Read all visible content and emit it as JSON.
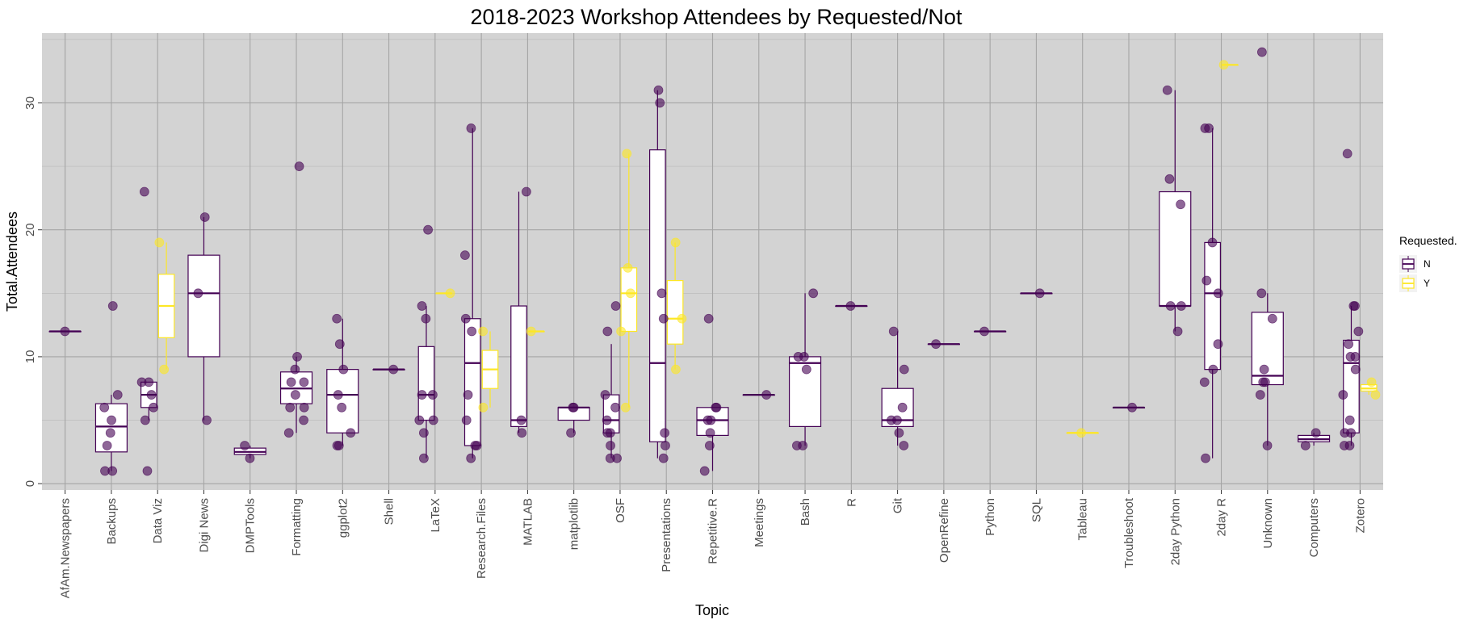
{
  "chart_data": {
    "type": "boxplot",
    "title": "2018-2023 Workshop Attendees by Requested/Not",
    "xlabel": "Topic",
    "ylabel": "Total.Attendees",
    "ylim": [
      -0.5,
      35.5
    ],
    "yticks": [
      0,
      10,
      20,
      30
    ],
    "grid": true,
    "panel_background": "#d3d3d3",
    "legend": {
      "title": "Requested.",
      "position": "right",
      "entries": [
        {
          "key": "N",
          "label": "N",
          "color": "#440154"
        },
        {
          "key": "Y",
          "label": "Y",
          "color": "#FDE725"
        }
      ]
    },
    "categories": [
      "AfAm.Newspapers",
      "Backups",
      "Data Viz",
      "Digi News",
      "DMPTools",
      "Formatting",
      "ggplot2",
      "Shell",
      "LaTeX",
      "Research.Files",
      "MATLAB",
      "matplotlib",
      "OSF",
      "Presentations",
      "Repetitive.R",
      "Meetings",
      "Bash",
      "R",
      "Git",
      "OpenRefine",
      "Python",
      "SQL",
      "Tableau",
      "Troubleshoot",
      "2day Python",
      "2day R",
      "Unknown",
      "Computers",
      "Zotero"
    ],
    "series": [
      {
        "name": "N",
        "color": "#440154",
        "boxes": {
          "AfAm.Newspapers": [
            12,
            12,
            12,
            12,
            12
          ],
          "Backups": [
            1,
            2.5,
            4.5,
            6.3,
            7
          ],
          "Data Viz": [
            5,
            6,
            7,
            8,
            8
          ],
          "Digi News": [
            5,
            10,
            15,
            18,
            21
          ],
          "DMPTools": [
            2,
            2.3,
            2.5,
            2.8,
            3
          ],
          "Formatting": [
            4,
            6.3,
            7.5,
            8.8,
            10
          ],
          "ggplot2": [
            3,
            4,
            7,
            9,
            13
          ],
          "Shell": [
            9,
            9,
            9,
            9,
            9
          ],
          "LaTeX": [
            2,
            5,
            7,
            10.8,
            14
          ],
          "Research.Files": [
            2,
            3,
            9.5,
            13,
            28
          ],
          "MATLAB": [
            4,
            4.5,
            5,
            14,
            23
          ],
          "matplotlib": [
            4,
            5,
            6,
            6,
            6
          ],
          "OSF": [
            2,
            4,
            5,
            7,
            11
          ],
          "Presentations": [
            2,
            3.3,
            9.5,
            26.3,
            31
          ],
          "Repetitive.R": [
            1,
            3.8,
            5,
            6,
            6
          ],
          "Meetings": [
            7,
            7,
            7,
            7,
            7
          ],
          "Bash": [
            3,
            4.5,
            9.5,
            10,
            15
          ],
          "R": [
            14,
            14,
            14,
            14,
            14
          ],
          "Git": [
            3,
            4.5,
            5,
            7.5,
            12
          ],
          "OpenRefine": [
            11,
            11,
            11,
            11,
            11
          ],
          "Python": [
            12,
            12,
            12,
            12,
            12
          ],
          "SQL": [
            15,
            15,
            15,
            15,
            15
          ],
          "Troubleshoot": [
            6,
            6,
            6,
            6,
            6
          ],
          "2day Python": [
            12,
            14,
            14,
            23,
            31
          ],
          "2day R": [
            2,
            9,
            15,
            19,
            28
          ],
          "Unknown": [
            3,
            7.8,
            8.5,
            13.5,
            15
          ],
          "Computers": [
            3,
            3.3,
            3.5,
            3.8,
            4
          ],
          "Zotero": [
            3,
            4,
            9.5,
            11.3,
            14
          ]
        },
        "points": {
          "AfAm.Newspapers": [
            12
          ],
          "Backups": [
            1,
            1,
            3,
            4,
            5,
            6,
            7,
            14
          ],
          "Data Viz": [
            1,
            5,
            6,
            7,
            8,
            8,
            23
          ],
          "Digi News": [
            5,
            15,
            21
          ],
          "DMPTools": [
            2,
            3
          ],
          "Formatting": [
            4,
            5,
            6,
            6,
            7,
            8,
            8,
            9,
            10,
            25
          ],
          "ggplot2": [
            3,
            3,
            4,
            6,
            7,
            9,
            11,
            13
          ],
          "Shell": [
            9
          ],
          "LaTeX": [
            2,
            4,
            5,
            5,
            7,
            7,
            13,
            14,
            20
          ],
          "Research.Files": [
            2,
            3,
            3,
            5,
            7,
            12,
            13,
            18,
            28
          ],
          "MATLAB": [
            4,
            5,
            23
          ],
          "matplotlib": [
            4,
            6,
            6
          ],
          "OSF": [
            2,
            2,
            3,
            4,
            4,
            5,
            6,
            7,
            12,
            14
          ],
          "Presentations": [
            2,
            3,
            4,
            13,
            15,
            30,
            31
          ],
          "Repetitive.R": [
            1,
            3,
            4,
            5,
            5,
            6,
            6,
            13
          ],
          "Meetings": [
            7
          ],
          "Bash": [
            3,
            3,
            9,
            10,
            10,
            15
          ],
          "R": [
            14
          ],
          "Git": [
            3,
            4,
            5,
            5,
            6,
            9,
            12
          ],
          "OpenRefine": [
            11
          ],
          "Python": [
            12
          ],
          "SQL": [
            15
          ],
          "Troubleshoot": [
            6
          ],
          "2day Python": [
            12,
            14,
            14,
            22,
            24,
            31
          ],
          "2day R": [
            2,
            8,
            9,
            11,
            15,
            16,
            19,
            28,
            28
          ],
          "Unknown": [
            3,
            7,
            8,
            8,
            9,
            13,
            15,
            34
          ],
          "Computers": [
            3,
            4
          ],
          "Zotero": [
            3,
            3,
            4,
            4,
            5,
            7,
            9,
            10,
            10,
            11,
            12,
            14,
            14,
            26
          ]
        }
      },
      {
        "name": "Y",
        "color": "#FDE725",
        "boxes": {
          "Data Viz": [
            9,
            11.5,
            14,
            16.5,
            19
          ],
          "LaTeX": [
            15,
            15,
            15,
            15,
            15
          ],
          "Research.Files": [
            6,
            7.5,
            9,
            10.5,
            12
          ],
          "MATLAB": [
            12,
            12,
            12,
            12,
            12
          ],
          "OSF": [
            6,
            12,
            15,
            17,
            26
          ],
          "Presentations": [
            9,
            11,
            13,
            16,
            19
          ],
          "Tableau": [
            4,
            4,
            4,
            4,
            4
          ],
          "2day R": [
            33,
            33,
            33,
            33,
            33
          ],
          "Zotero": [
            7,
            7.3,
            7.5,
            7.8,
            8
          ]
        },
        "points": {
          "Data Viz": [
            9,
            19
          ],
          "LaTeX": [
            15
          ],
          "Research.Files": [
            6,
            12
          ],
          "MATLAB": [
            12
          ],
          "OSF": [
            6,
            12,
            15,
            17,
            26
          ],
          "Presentations": [
            9,
            13,
            19
          ],
          "Tableau": [
            4
          ],
          "2day R": [
            33
          ],
          "Zotero": [
            7,
            8
          ]
        }
      }
    ]
  }
}
